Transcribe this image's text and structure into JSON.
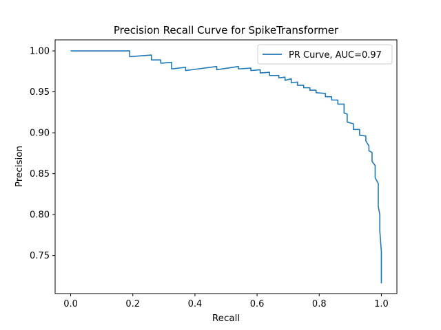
{
  "chart_data": {
    "type": "line",
    "title": "Precision Recall Curve for SpikeTransformer",
    "xlabel": "Recall",
    "ylabel": "Precision",
    "xlim": [
      -0.05,
      1.05
    ],
    "ylim": [
      0.7035,
      1.0135
    ],
    "xticks": [
      0.0,
      0.2,
      0.4,
      0.6,
      0.8,
      1.0
    ],
    "xtick_labels": [
      "0.0",
      "0.2",
      "0.4",
      "0.6",
      "0.8",
      "1.0"
    ],
    "yticks": [
      0.75,
      0.8,
      0.85,
      0.9,
      0.95,
      1.0
    ],
    "ytick_labels": [
      "0.75",
      "0.80",
      "0.85",
      "0.90",
      "0.95",
      "1.00"
    ],
    "grid": false,
    "legend_position": "top-right",
    "colors": {
      "series": "#1f77b4",
      "axes": "#000000",
      "legend_border": "#cccccc"
    },
    "series": [
      {
        "name": "PR Curve, AUC=0.97",
        "x": [
          0.0,
          0.19,
          0.19,
          0.26,
          0.26,
          0.29,
          0.29,
          0.325,
          0.325,
          0.37,
          0.37,
          0.47,
          0.47,
          0.54,
          0.54,
          0.58,
          0.58,
          0.61,
          0.61,
          0.64,
          0.64,
          0.67,
          0.67,
          0.69,
          0.69,
          0.71,
          0.71,
          0.73,
          0.73,
          0.75,
          0.75,
          0.77,
          0.77,
          0.79,
          0.79,
          0.82,
          0.82,
          0.84,
          0.84,
          0.86,
          0.86,
          0.88,
          0.88,
          0.89,
          0.89,
          0.91,
          0.91,
          0.93,
          0.93,
          0.95,
          0.95,
          0.96,
          0.96,
          0.97,
          0.97,
          0.98,
          0.98,
          0.99,
          0.99,
          0.995,
          0.995,
          1.0,
          1.0
        ],
        "y": [
          1.0,
          1.0,
          0.993,
          0.995,
          0.989,
          0.989,
          0.985,
          0.986,
          0.978,
          0.98,
          0.976,
          0.981,
          0.977,
          0.981,
          0.978,
          0.979,
          0.976,
          0.977,
          0.973,
          0.974,
          0.97,
          0.97,
          0.967,
          0.968,
          0.964,
          0.966,
          0.961,
          0.962,
          0.958,
          0.958,
          0.955,
          0.955,
          0.952,
          0.952,
          0.949,
          0.948,
          0.944,
          0.944,
          0.94,
          0.94,
          0.935,
          0.935,
          0.924,
          0.923,
          0.913,
          0.911,
          0.904,
          0.904,
          0.897,
          0.896,
          0.89,
          0.884,
          0.878,
          0.876,
          0.865,
          0.86,
          0.845,
          0.838,
          0.81,
          0.8,
          0.78,
          0.755,
          0.716
        ]
      }
    ]
  }
}
